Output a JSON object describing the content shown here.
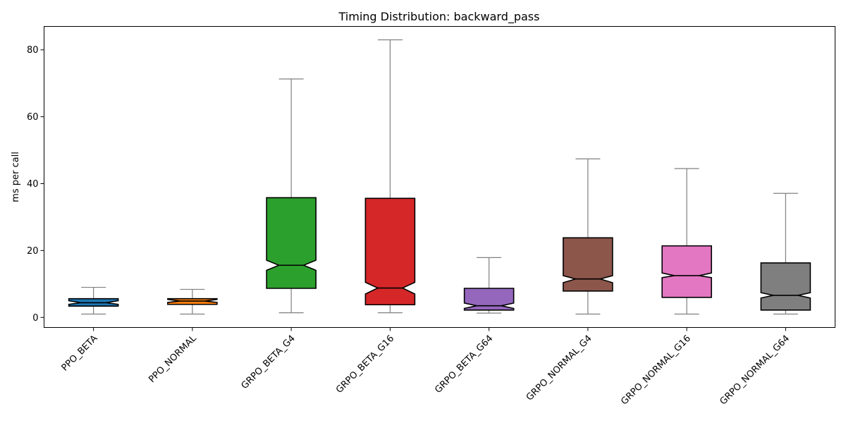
{
  "chart_data": {
    "type": "box",
    "title": "Timing Distribution: backward_pass",
    "xlabel": "",
    "ylabel": "ms per call",
    "ylim": [
      -3,
      87
    ],
    "yticks": [
      0,
      20,
      40,
      60,
      80
    ],
    "grid": false,
    "notched": true,
    "categories": [
      "PPO_BETA",
      "PPO_NORMAL",
      "GRPO_BETA_G4",
      "GRPO_BETA_G16",
      "GRPO_BETA_G64",
      "GRPO_NORMAL_G4",
      "GRPO_NORMAL_G16",
      "GRPO_NORMAL_G64"
    ],
    "boxes": [
      {
        "name": "PPO_BETA",
        "whislo": 1.0,
        "q1": 3.4,
        "med": 4.4,
        "q3": 5.6,
        "whishi": 9.0,
        "notch_lo": 3.9,
        "notch_hi": 5.0,
        "color": "#1f77b4"
      },
      {
        "name": "PPO_NORMAL",
        "whislo": 1.0,
        "q1": 3.9,
        "med": 4.9,
        "q3": 5.6,
        "whishi": 8.4,
        "notch_lo": 4.5,
        "notch_hi": 5.4,
        "color": "#ff7f0e"
      },
      {
        "name": "GRPO_BETA_G4",
        "whislo": 1.4,
        "q1": 8.7,
        "med": 15.6,
        "q3": 35.8,
        "whishi": 71.3,
        "notch_lo": 14.1,
        "notch_hi": 17.1,
        "color": "#2ca02c"
      },
      {
        "name": "GRPO_BETA_G16",
        "whislo": 1.4,
        "q1": 3.8,
        "med": 8.8,
        "q3": 35.6,
        "whishi": 83.0,
        "notch_lo": 7.0,
        "notch_hi": 10.5,
        "color": "#d62728"
      },
      {
        "name": "GRPO_BETA_G64",
        "whislo": 1.3,
        "q1": 2.2,
        "med": 3.5,
        "q3": 8.7,
        "whishi": 17.9,
        "notch_lo": 2.7,
        "notch_hi": 4.3,
        "color": "#9467bd"
      },
      {
        "name": "GRPO_NORMAL_G4",
        "whislo": 1.0,
        "q1": 7.9,
        "med": 11.5,
        "q3": 23.8,
        "whishi": 47.4,
        "notch_lo": 10.4,
        "notch_hi": 12.5,
        "color": "#8c564b"
      },
      {
        "name": "GRPO_NORMAL_G16",
        "whislo": 1.0,
        "q1": 6.0,
        "med": 12.5,
        "q3": 21.4,
        "whishi": 44.5,
        "notch_lo": 11.9,
        "notch_hi": 13.3,
        "color": "#e377c2"
      },
      {
        "name": "GRPO_NORMAL_G64",
        "whislo": 1.0,
        "q1": 2.2,
        "med": 6.6,
        "q3": 16.3,
        "whishi": 37.1,
        "notch_lo": 5.8,
        "notch_hi": 7.4,
        "color": "#7f7f7f"
      }
    ],
    "whisker_color": "#808080",
    "box_edge_color": "#000000"
  }
}
